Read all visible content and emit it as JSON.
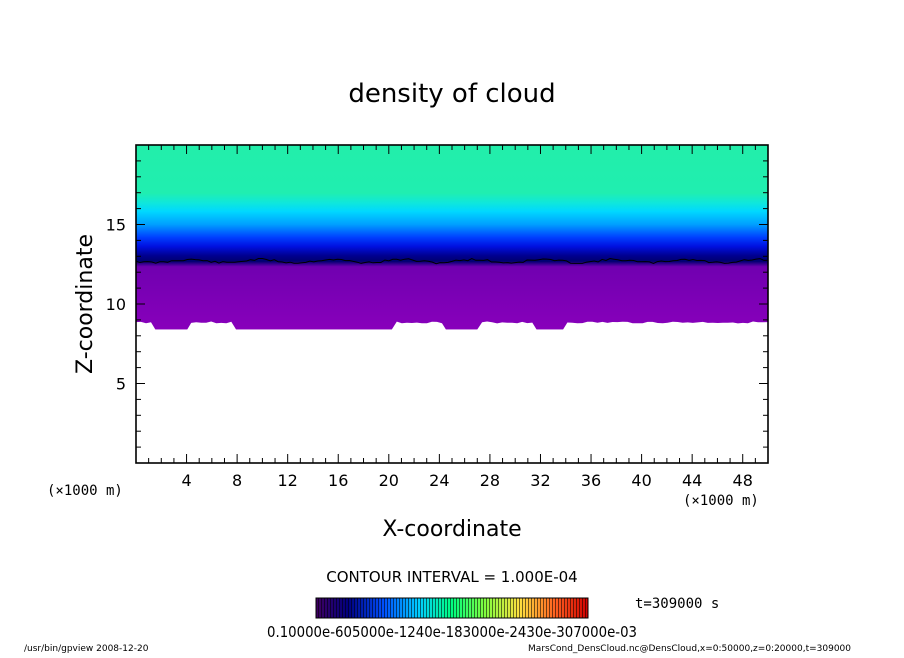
{
  "chart_data": {
    "type": "heatmap",
    "title": "density of cloud",
    "xlabel": "X-coordinate",
    "ylabel": "Z-coordinate",
    "x_unit": "(×1000 m)",
    "z_unit": "(×1000 m)",
    "xlim": [
      0,
      50
    ],
    "ylim": [
      0,
      20
    ],
    "x_ticks": [
      "4",
      "8",
      "12",
      "16",
      "20",
      "24",
      "28",
      "32",
      "36",
      "40",
      "44",
      "48"
    ],
    "y_ticks": [
      "5",
      "10",
      "15"
    ],
    "contour_interval_label": "CONTOUR INTERVAL = 1.000E-04",
    "time_label": "t=309000 s",
    "colorbar_labels_text": "0.10000e-605000e-1240e-183000e-2430e-307000e-03",
    "footer_left": "/usr/bin/gpview   2008-12-20",
    "footer_right": "MarsCond_DensCloud.nc@DensCloud,x=0:50000,z=0:20000,t=309000",
    "cloud_base_km": 8.4,
    "contour_line_km": 12.7,
    "colors": {
      "upper": "#22eeaa",
      "mid_cyan": "#00e0ff",
      "blue": "#0010e0",
      "navy": "#000070",
      "base": "#8800bb"
    }
  }
}
